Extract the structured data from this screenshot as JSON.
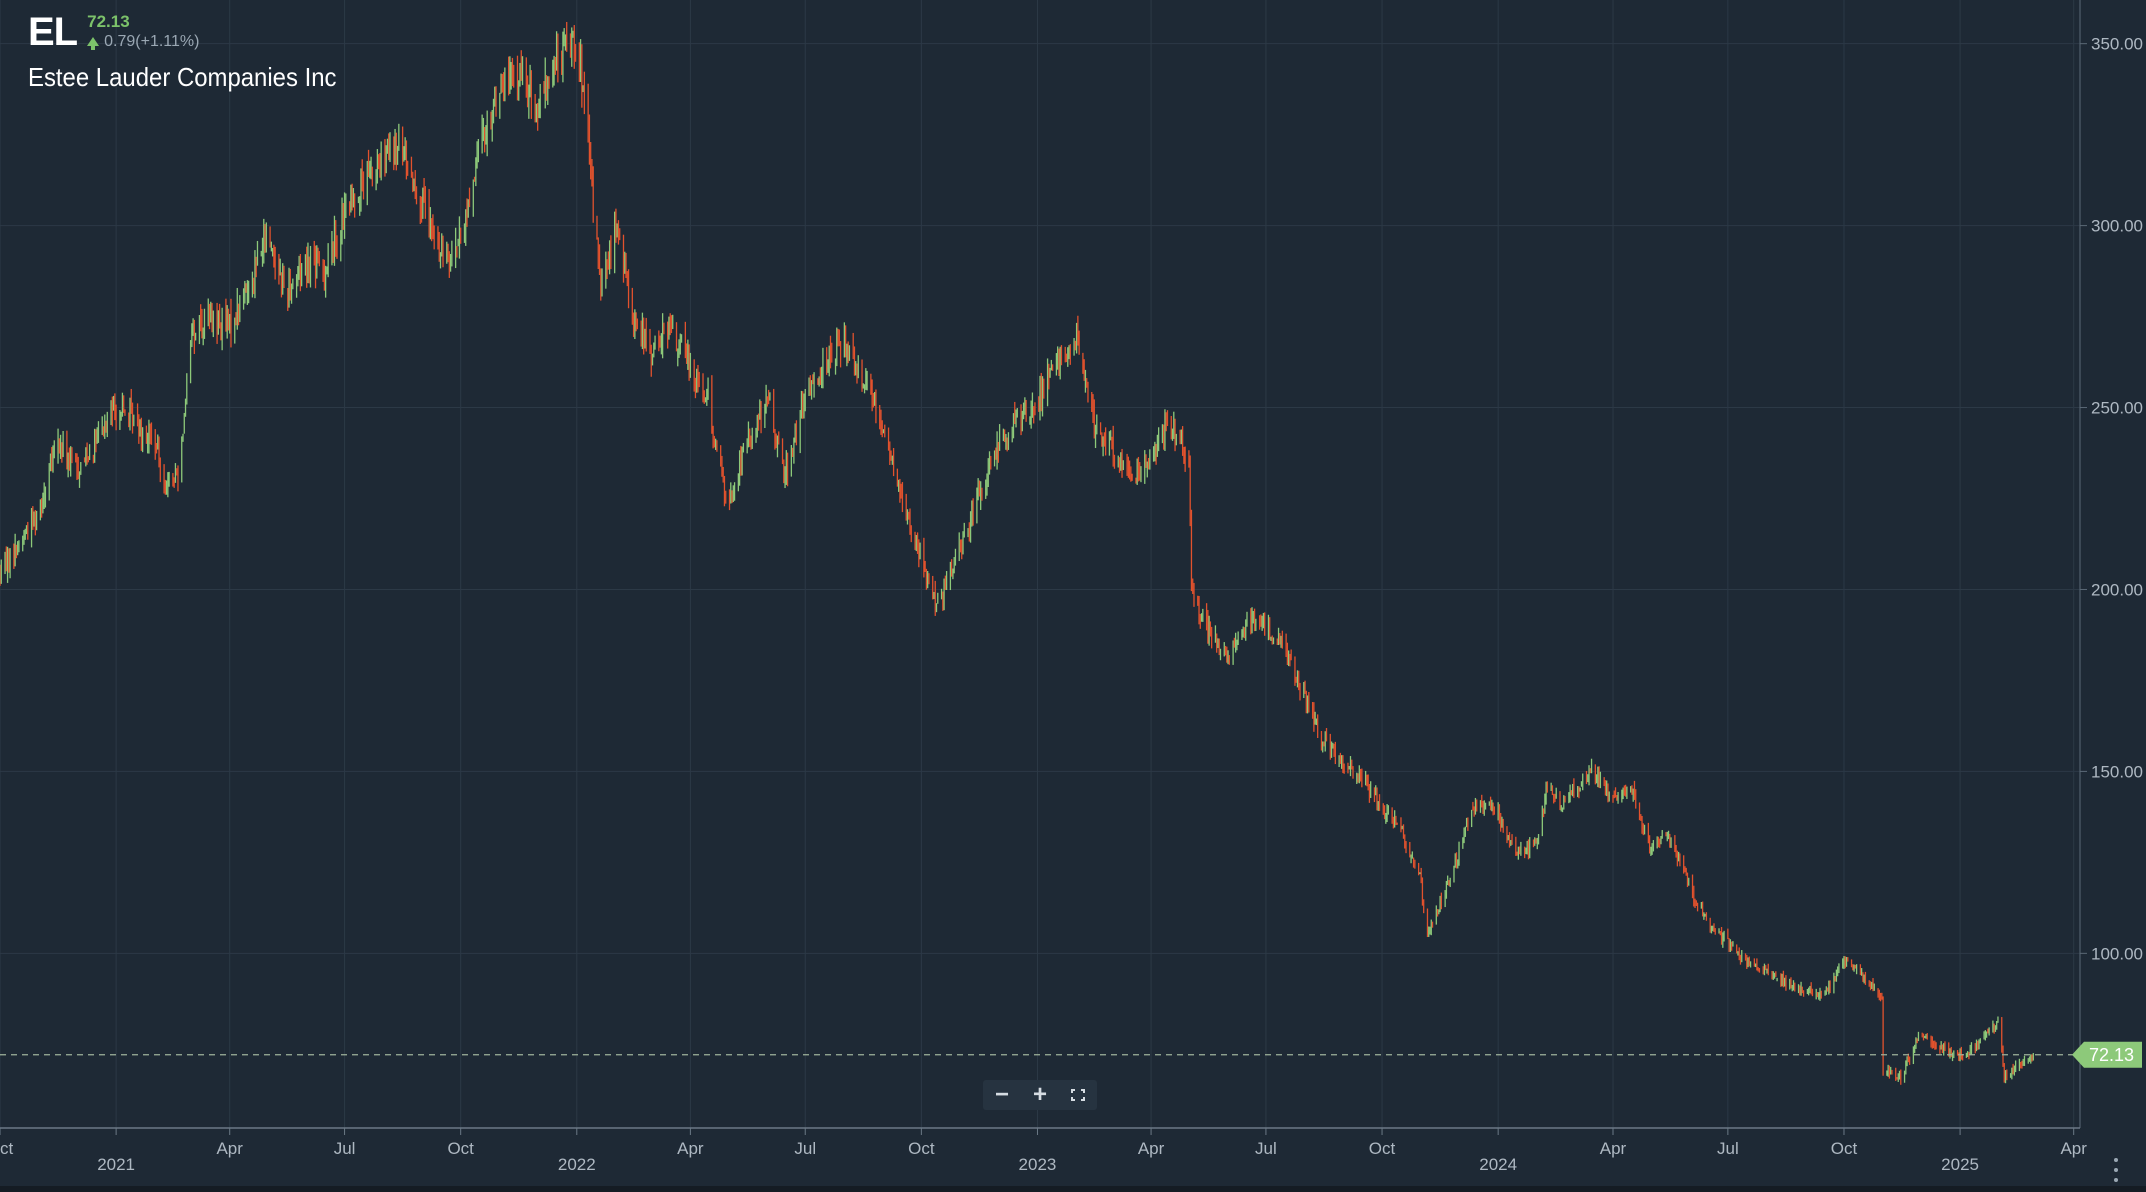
{
  "header": {
    "symbol": "EL",
    "price": "72.13",
    "change": "0.79(+1.11%)",
    "company": "Estee Lauder Companies Inc"
  },
  "colors": {
    "background": "#1e2935",
    "grid": "#2c3946",
    "up": "#8dc97a",
    "down": "#e2522d",
    "price_label_bg": "#8dc97a",
    "axis_text": "#aeb8c2"
  },
  "icons": [
    "zoom-out-icon",
    "zoom-in-icon",
    "fit-screen-icon",
    "more-vertical-icon"
  ],
  "chart_data": {
    "type": "candlestick",
    "x_label_start": "Oct",
    "x_ticks": [
      "Oct",
      "2021",
      "Apr",
      "Jul",
      "Oct",
      "2022",
      "Apr",
      "Jul",
      "Oct",
      "2023",
      "Apr",
      "Jul",
      "Oct",
      "2024",
      "Apr",
      "Jul",
      "Oct",
      "2025",
      "Apr"
    ],
    "y_ticks": [
      "100.00",
      "150.00",
      "200.00",
      "250.00",
      "300.00",
      "350.00"
    ],
    "ylim": [
      52,
      362
    ],
    "xlim": [
      "2020-10-01",
      "2025-04-06"
    ],
    "last_price": 72.13,
    "last_price_label": "72.13",
    "grid": true,
    "series": [
      {
        "points": [
          [
            "2020-10-01",
            205
          ],
          [
            "2020-10-15",
            212
          ],
          [
            "2020-11-01",
            222
          ],
          [
            "2020-11-15",
            240
          ],
          [
            "2020-12-01",
            233
          ],
          [
            "2020-12-15",
            240
          ],
          [
            "2021-01-01",
            250
          ],
          [
            "2021-01-15",
            247
          ],
          [
            "2021-02-01",
            240
          ],
          [
            "2021-02-10",
            228
          ],
          [
            "2021-02-20",
            233
          ],
          [
            "2021-03-01",
            270
          ],
          [
            "2021-03-15",
            275
          ],
          [
            "2021-04-01",
            272
          ],
          [
            "2021-04-15",
            283
          ],
          [
            "2021-05-01",
            298
          ],
          [
            "2021-05-15",
            282
          ],
          [
            "2021-06-01",
            290
          ],
          [
            "2021-06-15",
            288
          ],
          [
            "2021-07-01",
            303
          ],
          [
            "2021-07-15",
            312
          ],
          [
            "2021-08-01",
            318
          ],
          [
            "2021-08-15",
            322
          ],
          [
            "2021-09-01",
            305
          ],
          [
            "2021-09-15",
            292
          ],
          [
            "2021-10-01",
            295
          ],
          [
            "2021-10-15",
            320
          ],
          [
            "2021-11-01",
            338
          ],
          [
            "2021-11-15",
            342
          ],
          [
            "2021-12-01",
            332
          ],
          [
            "2021-12-15",
            345
          ],
          [
            "2022-01-01",
            353
          ],
          [
            "2022-01-10",
            322
          ],
          [
            "2022-01-20",
            282
          ],
          [
            "2022-02-01",
            300
          ],
          [
            "2022-02-15",
            275
          ],
          [
            "2022-03-01",
            265
          ],
          [
            "2022-03-15",
            272
          ],
          [
            "2022-04-01",
            262
          ],
          [
            "2022-04-15",
            252
          ],
          [
            "2022-05-01",
            222
          ],
          [
            "2022-05-15",
            240
          ],
          [
            "2022-06-01",
            252
          ],
          [
            "2022-06-15",
            232
          ],
          [
            "2022-07-01",
            252
          ],
          [
            "2022-07-15",
            262
          ],
          [
            "2022-08-01",
            268
          ],
          [
            "2022-08-15",
            260
          ],
          [
            "2022-09-01",
            245
          ],
          [
            "2022-09-15",
            225
          ],
          [
            "2022-10-01",
            208
          ],
          [
            "2022-10-15",
            195
          ],
          [
            "2022-11-01",
            212
          ],
          [
            "2022-11-15",
            225
          ],
          [
            "2022-12-01",
            240
          ],
          [
            "2022-12-15",
            246
          ],
          [
            "2023-01-01",
            252
          ],
          [
            "2023-01-15",
            262
          ],
          [
            "2023-02-01",
            268
          ],
          [
            "2023-02-15",
            245
          ],
          [
            "2023-03-01",
            240
          ],
          [
            "2023-03-15",
            230
          ],
          [
            "2023-04-01",
            237
          ],
          [
            "2023-04-15",
            246
          ],
          [
            "2023-05-01",
            235
          ],
          [
            "2023-05-03",
            199
          ],
          [
            "2023-05-15",
            190
          ],
          [
            "2023-06-01",
            180
          ],
          [
            "2023-06-15",
            192
          ],
          [
            "2023-07-01",
            190
          ],
          [
            "2023-07-15",
            185
          ],
          [
            "2023-08-01",
            170
          ],
          [
            "2023-08-15",
            158
          ],
          [
            "2023-09-01",
            152
          ],
          [
            "2023-09-15",
            148
          ],
          [
            "2023-10-01",
            140
          ],
          [
            "2023-10-15",
            135
          ],
          [
            "2023-11-01",
            120
          ],
          [
            "2023-11-05",
            104
          ],
          [
            "2023-11-15",
            113
          ],
          [
            "2023-12-01",
            128
          ],
          [
            "2023-12-15",
            142
          ],
          [
            "2024-01-01",
            138
          ],
          [
            "2024-01-15",
            128
          ],
          [
            "2024-02-01",
            130
          ],
          [
            "2024-02-10",
            148
          ],
          [
            "2024-02-20",
            140
          ],
          [
            "2024-03-01",
            145
          ],
          [
            "2024-03-15",
            150
          ],
          [
            "2024-04-01",
            142
          ],
          [
            "2024-04-15",
            146
          ],
          [
            "2024-05-01",
            128
          ],
          [
            "2024-05-15",
            133
          ],
          [
            "2024-06-01",
            118
          ],
          [
            "2024-06-15",
            108
          ],
          [
            "2024-07-01",
            103
          ],
          [
            "2024-07-15",
            98
          ],
          [
            "2024-08-01",
            95
          ],
          [
            "2024-08-15",
            92
          ],
          [
            "2024-09-01",
            90
          ],
          [
            "2024-09-15",
            88
          ],
          [
            "2024-10-01",
            98
          ],
          [
            "2024-10-15",
            94
          ],
          [
            "2024-10-31",
            89
          ],
          [
            "2024-11-01",
            68
          ],
          [
            "2024-11-15",
            66
          ],
          [
            "2024-12-01",
            78
          ],
          [
            "2024-12-15",
            74
          ],
          [
            "2025-01-01",
            72
          ],
          [
            "2025-01-15",
            75
          ],
          [
            "2025-02-01",
            82
          ],
          [
            "2025-02-05",
            66
          ],
          [
            "2025-02-15",
            69
          ],
          [
            "2025-03-01",
            72.13
          ]
        ]
      }
    ]
  }
}
